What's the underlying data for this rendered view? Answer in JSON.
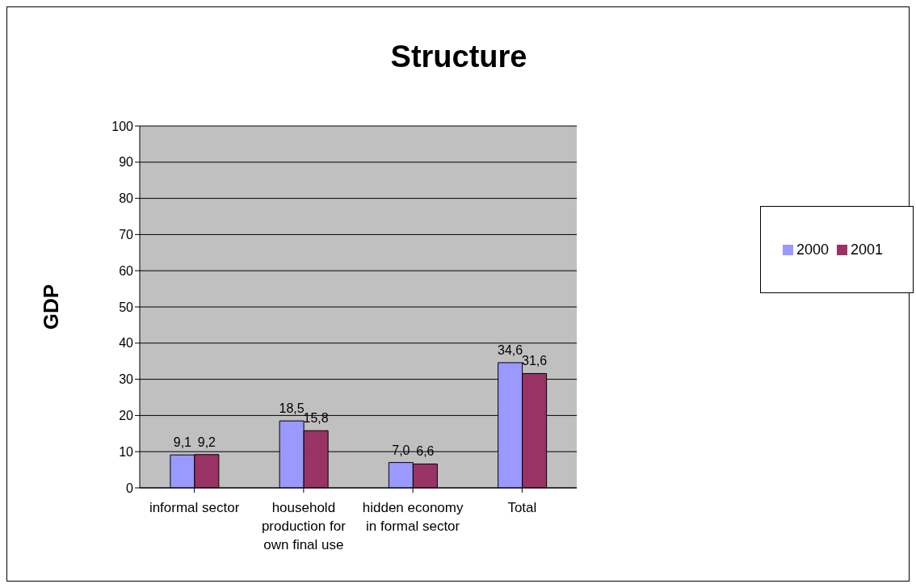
{
  "chart_data": {
    "type": "bar",
    "title": "Structure",
    "ylabel": "GDP",
    "categories": [
      "informal sector",
      "household production for own final use",
      "hidden economy in formal sector",
      "Total"
    ],
    "series": [
      {
        "name": "2000",
        "color": "#9999ff",
        "values": [
          9.1,
          18.5,
          7.0,
          34.6
        ],
        "value_labels": [
          "9,1",
          "18,5",
          "7,0",
          "34,6"
        ]
      },
      {
        "name": "2001",
        "color": "#993366",
        "values": [
          9.2,
          15.8,
          6.6,
          31.6
        ],
        "value_labels": [
          "9,2",
          "15,8",
          "6,6",
          "31,6"
        ]
      }
    ],
    "ylim": [
      0,
      100
    ],
    "yticks": [
      0,
      10,
      20,
      30,
      40,
      50,
      60,
      70,
      80,
      90,
      100
    ],
    "grid": "y",
    "legend": "right"
  }
}
